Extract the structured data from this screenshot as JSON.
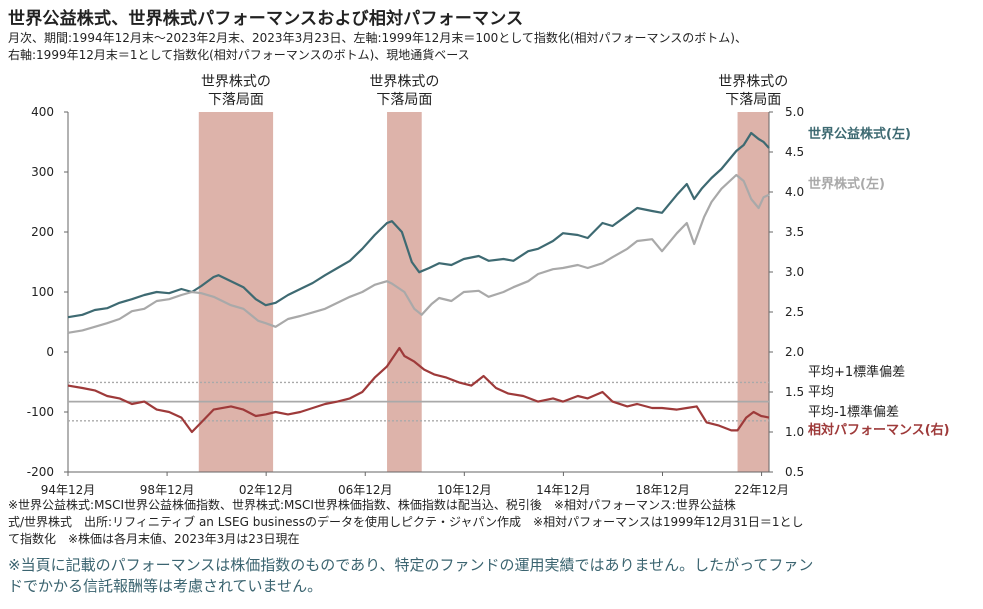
{
  "page": {
    "title": "世界公益株式、世界株式パフォーマンスおよび相対パフォーマンス",
    "subtitle_line1": "月次、期間:1994年12月末～2023年2月末、2023年3月23日、左軸:1999年12月末＝100として指数化(相対パフォーマンスのボトム)、",
    "subtitle_line2": "右軸:1999年12月末＝1として指数化(相対パフォーマンスのボトム)、現地通貨ベース",
    "notes_line1": "※世界公益株式:MSCI世界公益株価指数、世界株式:MSCI世界株価指数、株価指数は配当込、税引後　※相対パフォーマンス:世界公益株",
    "notes_line2": "式/世界株式　出所:リフィニティブ an LSEG businessのデータを使用しピクテ・ジャパン作成　※相対パフォーマンスは1999年12月31日＝1とし",
    "notes_line3": "て指数化　※株価は各月末値、2023年3月は23日現在",
    "disclaimer_line1": "※当頁に記載のパフォーマンスは株価指数のものであり、特定のファンドの運用実績ではありません。したがってファン",
    "disclaimer_line2": "ドでかかる信託報酬等は考慮されていません。"
  },
  "chart_data": {
    "type": "line",
    "colors": {
      "utilities": "#3e6a72",
      "world": "#a9a9a9",
      "relative": "#9e3a3a",
      "shade": "#ddb3aa",
      "refline": "#a9a9a9"
    },
    "left_axis": {
      "ylim": [
        -200,
        400
      ],
      "ticks": [
        400,
        300,
        200,
        100,
        0,
        -100,
        -200
      ]
    },
    "right_axis": {
      "ylim": [
        0.5,
        5.0
      ],
      "ticks": [
        "5.0",
        "4.5",
        "4.0",
        "3.5",
        "3.0",
        "2.5",
        "2.0",
        "1.5",
        "1.0",
        "0.5"
      ]
    },
    "x_ticks": [
      "94年12月",
      "98年12月",
      "02年12月",
      "06年12月",
      "10年12月",
      "14年12月",
      "18年12月",
      "22年12月"
    ],
    "x_tick_years": [
      1994.92,
      1998.92,
      2002.92,
      2006.92,
      2010.92,
      2014.92,
      2018.92,
      2022.92
    ],
    "xlim": [
      1994.92,
      2023.22
    ],
    "shaded_periods": [
      {
        "label1": "世界株式の",
        "label2": "下落局面",
        "start": 2000.2,
        "end": 2003.2
      },
      {
        "label1": "世界株式の",
        "label2": "下落局面",
        "start": 2007.8,
        "end": 2009.2
      },
      {
        "label1": "世界株式の",
        "label2": "下落局面",
        "start": 2021.95,
        "end": 2023.22
      }
    ],
    "series": [
      {
        "key": "utilities",
        "name": "世界公益株式(左)",
        "axis": "left",
        "points": [
          [
            1994.92,
            58
          ],
          [
            1995.5,
            62
          ],
          [
            1996.0,
            70
          ],
          [
            1996.5,
            73
          ],
          [
            1997.0,
            82
          ],
          [
            1997.5,
            88
          ],
          [
            1998.0,
            95
          ],
          [
            1998.5,
            100
          ],
          [
            1999.0,
            98
          ],
          [
            1999.5,
            105
          ],
          [
            1999.92,
            100
          ],
          [
            2000.3,
            110
          ],
          [
            2000.8,
            125
          ],
          [
            2001.0,
            128
          ],
          [
            2001.5,
            118
          ],
          [
            2002.0,
            108
          ],
          [
            2002.5,
            88
          ],
          [
            2002.9,
            78
          ],
          [
            2003.3,
            82
          ],
          [
            2003.8,
            95
          ],
          [
            2004.3,
            105
          ],
          [
            2004.8,
            115
          ],
          [
            2005.3,
            128
          ],
          [
            2005.8,
            140
          ],
          [
            2006.3,
            152
          ],
          [
            2006.8,
            172
          ],
          [
            2007.3,
            195
          ],
          [
            2007.8,
            215
          ],
          [
            2008.0,
            218
          ],
          [
            2008.4,
            200
          ],
          [
            2008.8,
            150
          ],
          [
            2009.1,
            133
          ],
          [
            2009.5,
            140
          ],
          [
            2009.9,
            148
          ],
          [
            2010.4,
            145
          ],
          [
            2010.9,
            155
          ],
          [
            2011.5,
            160
          ],
          [
            2011.9,
            152
          ],
          [
            2012.5,
            155
          ],
          [
            2012.9,
            152
          ],
          [
            2013.5,
            168
          ],
          [
            2013.9,
            172
          ],
          [
            2014.5,
            185
          ],
          [
            2014.9,
            198
          ],
          [
            2015.5,
            195
          ],
          [
            2015.9,
            190
          ],
          [
            2016.5,
            215
          ],
          [
            2016.9,
            210
          ],
          [
            2017.5,
            228
          ],
          [
            2017.9,
            240
          ],
          [
            2018.5,
            235
          ],
          [
            2018.9,
            232
          ],
          [
            2019.5,
            262
          ],
          [
            2019.9,
            280
          ],
          [
            2020.2,
            255
          ],
          [
            2020.5,
            272
          ],
          [
            2020.9,
            290
          ],
          [
            2021.3,
            305
          ],
          [
            2021.9,
            335
          ],
          [
            2022.2,
            345
          ],
          [
            2022.5,
            365
          ],
          [
            2022.8,
            355
          ],
          [
            2023.0,
            350
          ],
          [
            2023.22,
            340
          ]
        ]
      },
      {
        "key": "world",
        "name": "世界株式(左)",
        "axis": "left",
        "points": [
          [
            1994.92,
            32
          ],
          [
            1995.5,
            36
          ],
          [
            1996.0,
            42
          ],
          [
            1996.5,
            48
          ],
          [
            1997.0,
            55
          ],
          [
            1997.5,
            68
          ],
          [
            1998.0,
            72
          ],
          [
            1998.5,
            85
          ],
          [
            1999.0,
            88
          ],
          [
            1999.5,
            95
          ],
          [
            1999.92,
            100
          ],
          [
            2000.3,
            98
          ],
          [
            2000.8,
            92
          ],
          [
            2001.5,
            78
          ],
          [
            2002.0,
            72
          ],
          [
            2002.6,
            52
          ],
          [
            2002.9,
            48
          ],
          [
            2003.3,
            42
          ],
          [
            2003.8,
            55
          ],
          [
            2004.3,
            60
          ],
          [
            2004.8,
            66
          ],
          [
            2005.3,
            72
          ],
          [
            2005.8,
            82
          ],
          [
            2006.3,
            92
          ],
          [
            2006.8,
            100
          ],
          [
            2007.3,
            112
          ],
          [
            2007.8,
            118
          ],
          [
            2008.0,
            114
          ],
          [
            2008.5,
            100
          ],
          [
            2008.9,
            72
          ],
          [
            2009.2,
            62
          ],
          [
            2009.6,
            80
          ],
          [
            2009.9,
            90
          ],
          [
            2010.4,
            85
          ],
          [
            2010.9,
            100
          ],
          [
            2011.5,
            102
          ],
          [
            2011.9,
            92
          ],
          [
            2012.5,
            100
          ],
          [
            2012.9,
            108
          ],
          [
            2013.5,
            118
          ],
          [
            2013.9,
            130
          ],
          [
            2014.5,
            138
          ],
          [
            2014.9,
            140
          ],
          [
            2015.5,
            145
          ],
          [
            2015.9,
            140
          ],
          [
            2016.5,
            148
          ],
          [
            2016.9,
            158
          ],
          [
            2017.5,
            172
          ],
          [
            2017.9,
            185
          ],
          [
            2018.5,
            188
          ],
          [
            2018.9,
            168
          ],
          [
            2019.5,
            198
          ],
          [
            2019.9,
            215
          ],
          [
            2020.2,
            180
          ],
          [
            2020.6,
            225
          ],
          [
            2020.9,
            250
          ],
          [
            2021.3,
            272
          ],
          [
            2021.9,
            295
          ],
          [
            2022.2,
            285
          ],
          [
            2022.5,
            255
          ],
          [
            2022.8,
            240
          ],
          [
            2023.0,
            258
          ],
          [
            2023.22,
            262
          ]
        ]
      },
      {
        "key": "relative",
        "name": "相対パフォーマンス(右)",
        "axis": "right",
        "points": [
          [
            1994.92,
            1.58
          ],
          [
            1995.5,
            1.55
          ],
          [
            1996.0,
            1.52
          ],
          [
            1996.5,
            1.45
          ],
          [
            1997.0,
            1.42
          ],
          [
            1997.5,
            1.35
          ],
          [
            1998.0,
            1.38
          ],
          [
            1998.5,
            1.28
          ],
          [
            1999.0,
            1.25
          ],
          [
            1999.5,
            1.18
          ],
          [
            1999.92,
            1.0
          ],
          [
            2000.3,
            1.12
          ],
          [
            2000.8,
            1.28
          ],
          [
            2001.5,
            1.32
          ],
          [
            2002.0,
            1.28
          ],
          [
            2002.5,
            1.2
          ],
          [
            2002.9,
            1.22
          ],
          [
            2003.3,
            1.25
          ],
          [
            2003.8,
            1.22
          ],
          [
            2004.3,
            1.25
          ],
          [
            2004.8,
            1.3
          ],
          [
            2005.3,
            1.35
          ],
          [
            2005.8,
            1.38
          ],
          [
            2006.3,
            1.42
          ],
          [
            2006.8,
            1.5
          ],
          [
            2007.3,
            1.68
          ],
          [
            2007.8,
            1.82
          ],
          [
            2008.3,
            2.05
          ],
          [
            2008.5,
            1.95
          ],
          [
            2008.9,
            1.88
          ],
          [
            2009.3,
            1.78
          ],
          [
            2009.7,
            1.72
          ],
          [
            2010.2,
            1.68
          ],
          [
            2010.7,
            1.62
          ],
          [
            2011.2,
            1.58
          ],
          [
            2011.7,
            1.7
          ],
          [
            2012.2,
            1.55
          ],
          [
            2012.7,
            1.48
          ],
          [
            2013.3,
            1.45
          ],
          [
            2013.9,
            1.38
          ],
          [
            2014.5,
            1.42
          ],
          [
            2014.9,
            1.38
          ],
          [
            2015.5,
            1.45
          ],
          [
            2015.9,
            1.42
          ],
          [
            2016.5,
            1.5
          ],
          [
            2016.9,
            1.38
          ],
          [
            2017.5,
            1.32
          ],
          [
            2017.9,
            1.35
          ],
          [
            2018.5,
            1.3
          ],
          [
            2018.9,
            1.3
          ],
          [
            2019.5,
            1.28
          ],
          [
            2019.9,
            1.3
          ],
          [
            2020.3,
            1.32
          ],
          [
            2020.7,
            1.12
          ],
          [
            2021.2,
            1.08
          ],
          [
            2021.7,
            1.02
          ],
          [
            2021.95,
            1.02
          ],
          [
            2022.3,
            1.18
          ],
          [
            2022.6,
            1.25
          ],
          [
            2022.9,
            1.2
          ],
          [
            2023.22,
            1.18
          ]
        ]
      }
    ],
    "ref_lines": [
      {
        "label": "平均+1標準偏差",
        "value": 1.62,
        "style": "dotted"
      },
      {
        "label": "平均",
        "value": 1.38,
        "style": "solid"
      },
      {
        "label": "平均-1標準偏差",
        "value": 1.14,
        "style": "dotted"
      }
    ]
  }
}
